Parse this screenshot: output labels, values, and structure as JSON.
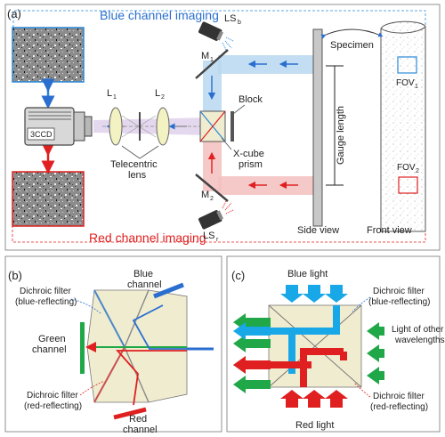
{
  "panels": {
    "a": {
      "label": "(a)",
      "blue_imaging": "Blue channel imaging",
      "red_imaging": "Red channel imaging",
      "camera": "3CCD",
      "lens1": "L",
      "lens1_sub": "1",
      "lens2": "L",
      "lens2_sub": "2",
      "lens_caption_1": "Telecentric",
      "lens_caption_2": "lens",
      "ls_b": "LS",
      "ls_b_sub": "b",
      "ls_r": "LS",
      "ls_r_sub": "r",
      "mirror1": "M",
      "mirror1_sub": "1",
      "mirror2": "M",
      "mirror2_sub": "2",
      "block": "Block",
      "prism_1": "X-cube",
      "prism_2": "prism",
      "gauge": "Gauge length",
      "specimen": "Specimen",
      "fov1": "FOV",
      "fov1_sub": "1",
      "fov2": "FOV",
      "fov2_sub": "2",
      "side_view": "Side view",
      "front_view": "Front view"
    },
    "b": {
      "label": "(b)",
      "dichroic_blue_1": "Dichroic filter",
      "dichroic_blue_2": "(blue-reflecting)",
      "blue_ch_1": "Blue",
      "blue_ch_2": "channel",
      "green_ch_1": "Green",
      "green_ch_2": "channel",
      "dichroic_red_1": "Dichroic filter",
      "dichroic_red_2": "(red-reflecting)",
      "red_ch_1": "Red",
      "red_ch_2": "channel"
    },
    "c": {
      "label": "(c)",
      "blue_light": "Blue light",
      "dichroic_blue_1": "Dichroic filter",
      "dichroic_blue_2": "(blue-reflecting)",
      "other_1": "Light of other",
      "other_2": "wavelengths",
      "dichroic_red_1": "Dichroic filter",
      "dichroic_red_2": "(red-reflecting)",
      "red_light": "Red light"
    }
  },
  "colors": {
    "blue": "#2a8ad8",
    "light_blue": "#18a8e8",
    "red": "#e02020",
    "green": "#20a848",
    "tan": "#f0ecd0",
    "gray": "#9a9a9a"
  }
}
